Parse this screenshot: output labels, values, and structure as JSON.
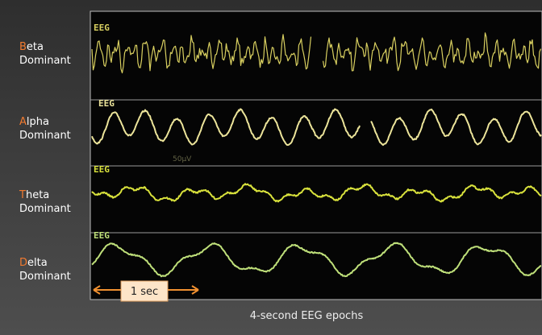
{
  "rows": [
    {
      "initial": "B",
      "rest": "eta",
      "line2": "Dominant",
      "panel_label": "EEG"
    },
    {
      "initial": "A",
      "rest": "lpha",
      "line2": "Dominant",
      "panel_label": "EEG",
      "scale_label": "50µV"
    },
    {
      "initial": "T",
      "rest": "heta",
      "line2": "Dominant",
      "panel_label": "EEG"
    },
    {
      "initial": "D",
      "rest": "elta",
      "line2": "Dominant",
      "panel_label": "EEG"
    }
  ],
  "scale_bar": {
    "label": "1 sec"
  },
  "caption": "4-second EEG epochs"
}
